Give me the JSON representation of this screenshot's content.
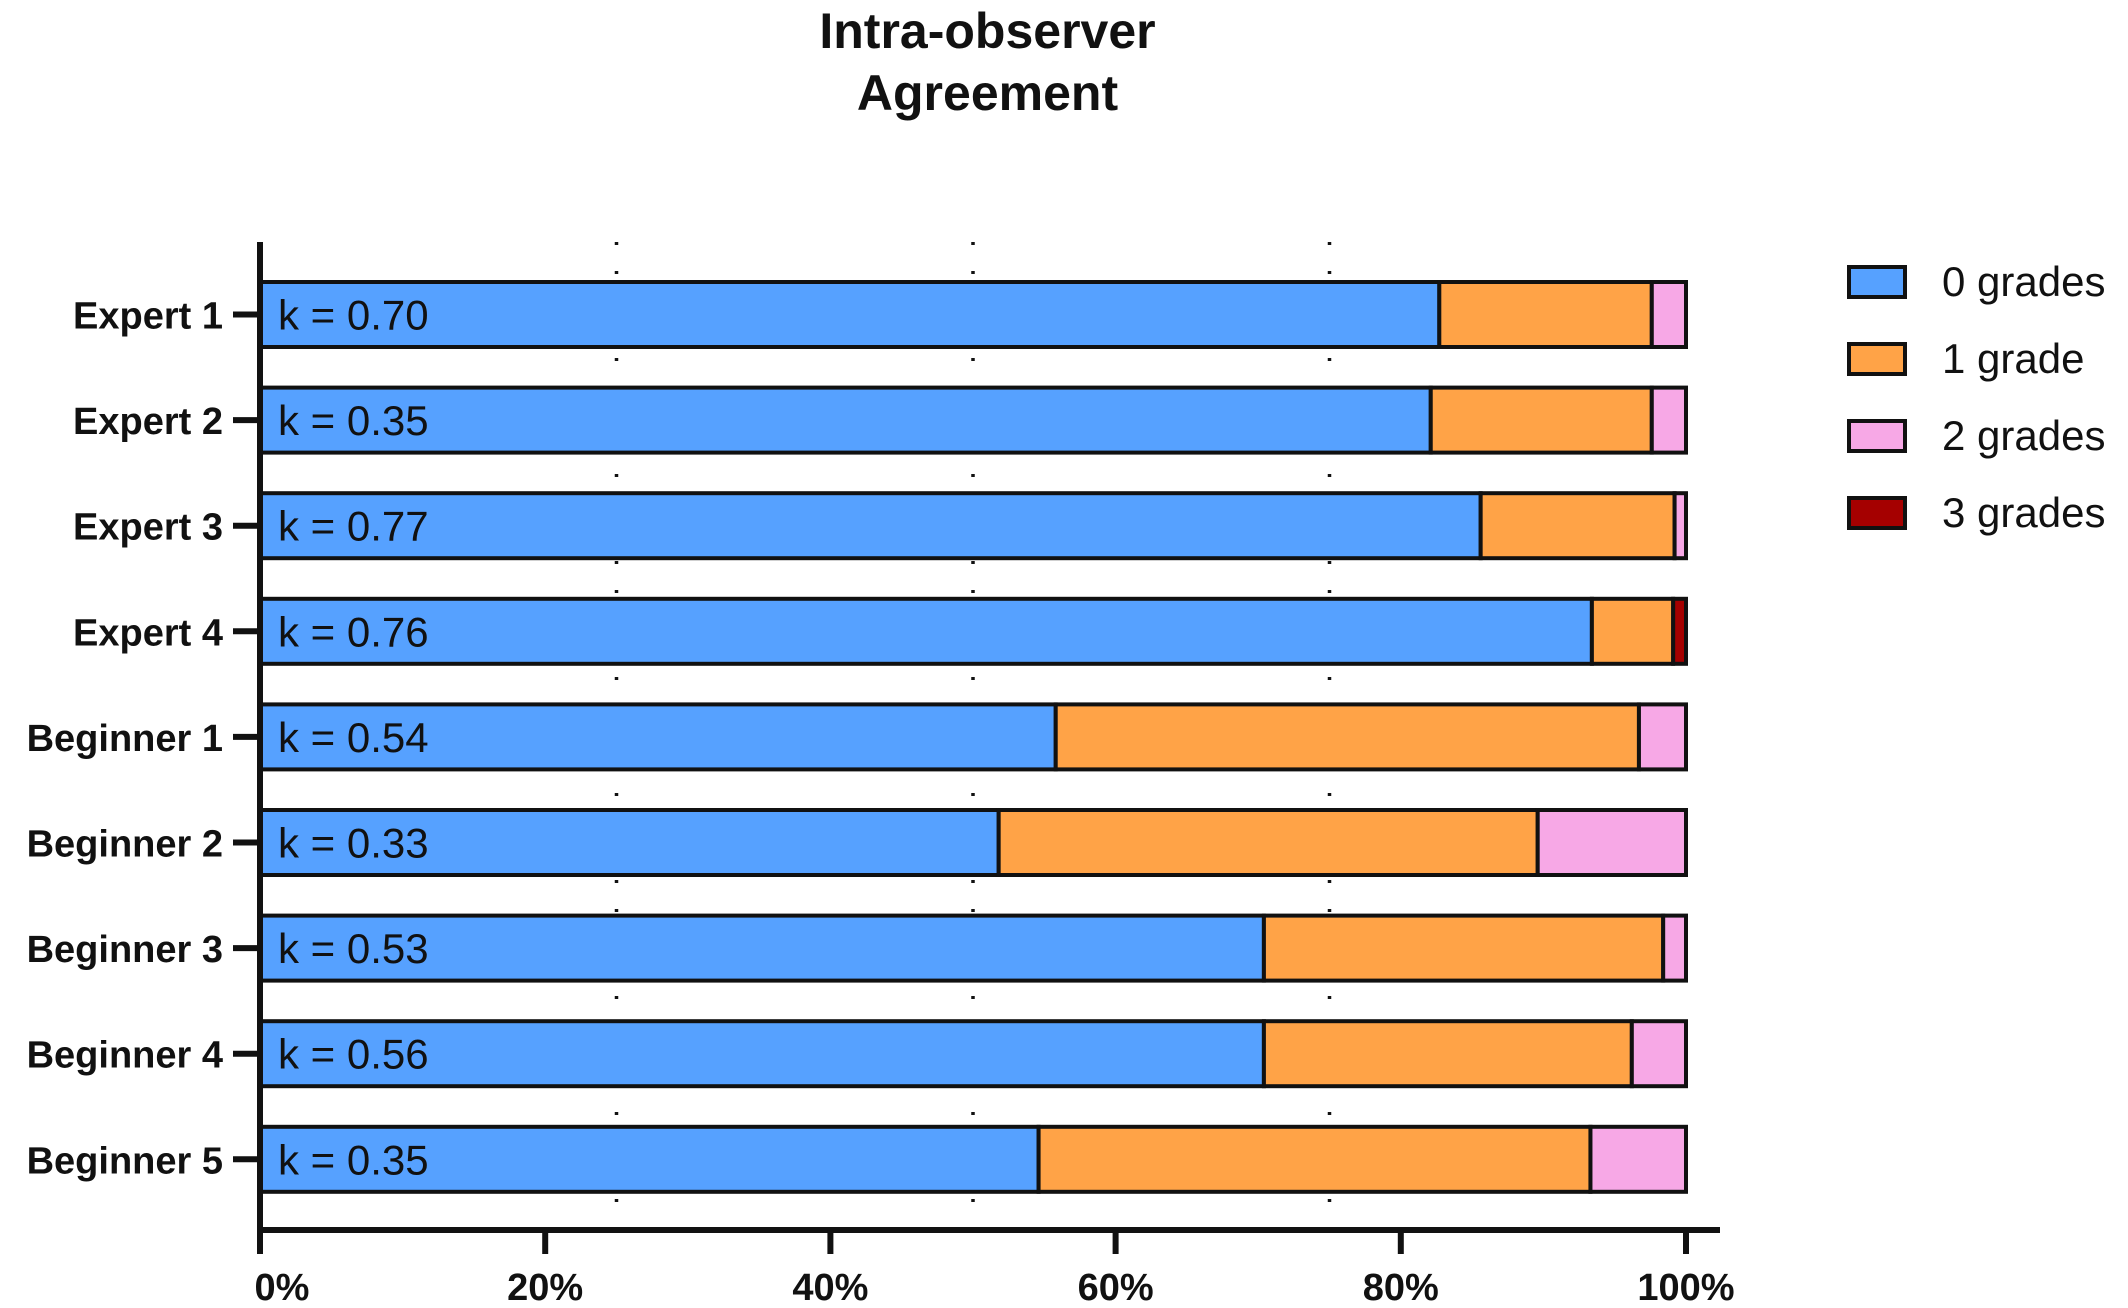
{
  "chart_data": {
    "type": "bar",
    "orientation": "horizontal",
    "stacked": true,
    "title_lines": [
      "Intra-observer",
      "Agreement"
    ],
    "categories": [
      "Expert 1",
      "Expert 2",
      "Expert 3",
      "Expert 4",
      "Beginner 1",
      "Beginner 2",
      "Beginner 3",
      "Beginner 4",
      "Beginner 5"
    ],
    "annotations": [
      "k = 0.70",
      "k = 0.35",
      "k = 0.77",
      "k = 0.76",
      "k = 0.54",
      "k = 0.33",
      "k = 0.53",
      "k = 0.56",
      "k = 0.35"
    ],
    "series": [
      {
        "name": "0 grades",
        "color": "#56a1ff",
        "values": [
          82.7,
          82.1,
          85.6,
          93.4,
          55.8,
          51.8,
          70.4,
          70.4,
          54.6
        ]
      },
      {
        "name": "1 grade",
        "color": "#ffa347",
        "values": [
          14.9,
          15.5,
          13.6,
          5.7,
          40.9,
          37.8,
          28.0,
          25.8,
          38.7
        ]
      },
      {
        "name": "2 grades",
        "color": "#f7a8e6",
        "values": [
          2.4,
          2.4,
          0.8,
          0.0,
          3.3,
          10.4,
          1.6,
          3.8,
          6.7
        ]
      },
      {
        "name": "3 grades",
        "color": "#a50000",
        "values": [
          0.0,
          0.0,
          0.0,
          0.9,
          0.0,
          0.0,
          0.0,
          0.0,
          0.0
        ]
      }
    ],
    "xlim": [
      0,
      100
    ],
    "xticks": [
      0,
      20,
      40,
      60,
      80,
      100
    ],
    "xtick_labels": [
      "0%",
      "20%",
      "40%",
      "60%",
      "80%",
      "100%"
    ],
    "gridlines_x": [
      25,
      50,
      75
    ],
    "grid": "dotted vertical",
    "legend_position": "top-right"
  }
}
